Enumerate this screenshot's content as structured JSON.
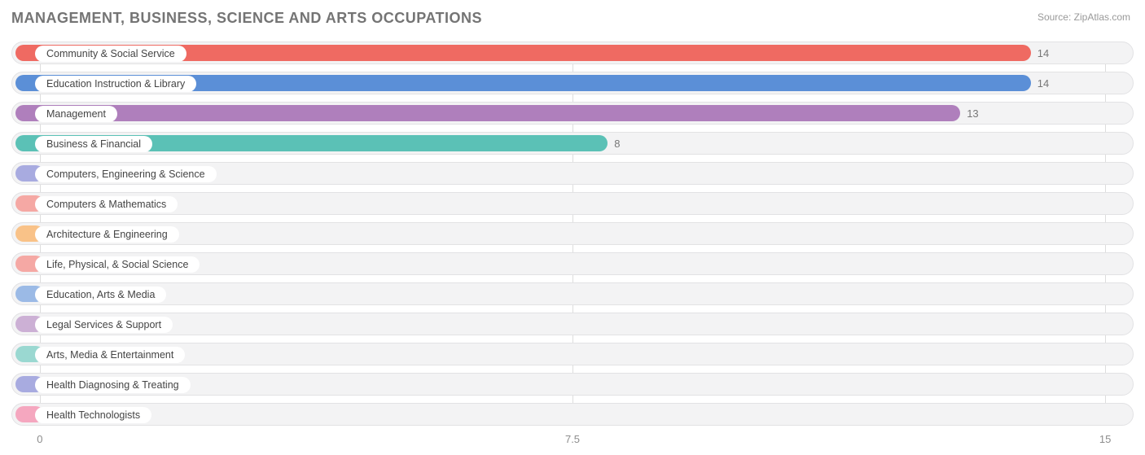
{
  "title": "MANAGEMENT, BUSINESS, SCIENCE AND ARTS OCCUPATIONS",
  "source": "Source: ZipAtlas.com",
  "chart": {
    "type": "bar-horizontal",
    "x_min": -0.4,
    "x_max": 15.4,
    "x_ticks": [
      0,
      7.5,
      15
    ],
    "track_bg": "#f3f3f4",
    "track_border": "#e2e2e4",
    "grid_color": "#dddddd",
    "label_bg": "#ffffff",
    "label_text_color": "#444444",
    "value_text_color": "#777777",
    "bar_origin_x": 325,
    "bar_full_width": 1045,
    "bars": [
      {
        "label": "Community & Social Service",
        "value": 14,
        "color": "#ef6a62"
      },
      {
        "label": "Education Instruction & Library",
        "value": 14,
        "color": "#5b8fd7"
      },
      {
        "label": "Management",
        "value": 13,
        "color": "#af7fbc"
      },
      {
        "label": "Business & Financial",
        "value": 8,
        "color": "#5bc1b6"
      },
      {
        "label": "Computers, Engineering & Science",
        "value": 0,
        "color": "#a8abe0"
      },
      {
        "label": "Computers & Mathematics",
        "value": 0,
        "color": "#f5a8a4"
      },
      {
        "label": "Architecture & Engineering",
        "value": 0,
        "color": "#f9c288"
      },
      {
        "label": "Life, Physical, & Social Science",
        "value": 0,
        "color": "#f5a8a4"
      },
      {
        "label": "Education, Arts & Media",
        "value": 0,
        "color": "#9bbae6"
      },
      {
        "label": "Legal Services & Support",
        "value": 0,
        "color": "#ccb0d5"
      },
      {
        "label": "Arts, Media & Entertainment",
        "value": 0,
        "color": "#9ad8d1"
      },
      {
        "label": "Health Diagnosing & Treating",
        "value": 0,
        "color": "#a8abe0"
      },
      {
        "label": "Health Technologists",
        "value": 0,
        "color": "#f5a7bf"
      }
    ]
  }
}
